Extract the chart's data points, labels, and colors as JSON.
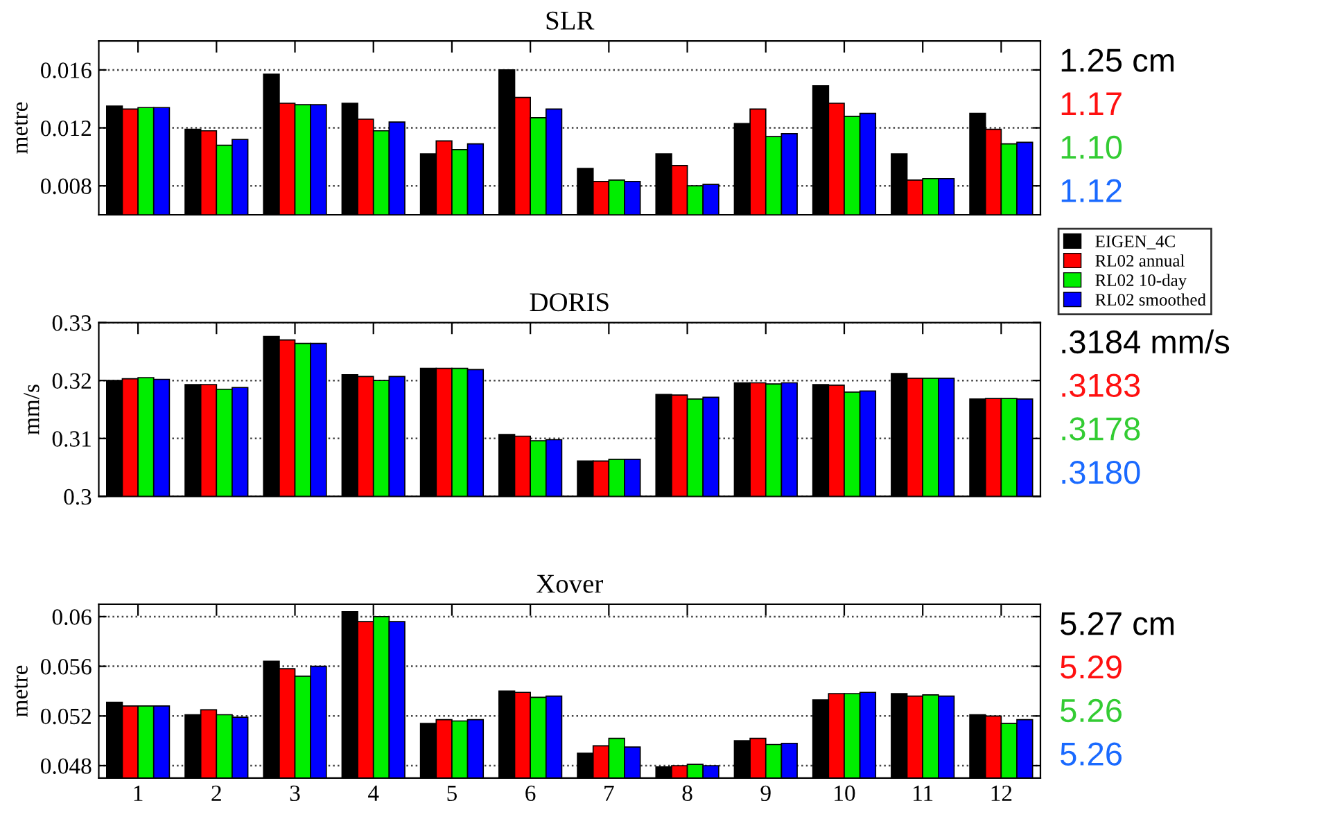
{
  "chart_data": [
    {
      "type": "bar",
      "title": "SLR",
      "ylabel": "metre",
      "categories": [
        "1",
        "2",
        "3",
        "4",
        "5",
        "6",
        "7",
        "8",
        "9",
        "10",
        "11",
        "12"
      ],
      "series": [
        {
          "name": "EIGEN_4C",
          "color": "#000000",
          "values": [
            0.0135,
            0.0119,
            0.0157,
            0.0137,
            0.0102,
            0.016,
            0.0092,
            0.0102,
            0.0123,
            0.0149,
            0.0102,
            0.013
          ]
        },
        {
          "name": "RL02 annual",
          "color": "#ff0000",
          "values": [
            0.0133,
            0.0118,
            0.0137,
            0.0126,
            0.0111,
            0.0141,
            0.0083,
            0.0094,
            0.0133,
            0.0137,
            0.0084,
            0.0119
          ]
        },
        {
          "name": "RL02 10-day",
          "color": "#00ee00",
          "values": [
            0.0134,
            0.0108,
            0.0136,
            0.0118,
            0.0105,
            0.0127,
            0.0084,
            0.008,
            0.0114,
            0.0128,
            0.0085,
            0.0109
          ]
        },
        {
          "name": "RL02 smoothed",
          "color": "#0000ff",
          "values": [
            0.0134,
            0.0112,
            0.0136,
            0.0124,
            0.0109,
            0.0133,
            0.0083,
            0.0081,
            0.0116,
            0.013,
            0.0085,
            0.011
          ]
        }
      ],
      "ylim": [
        0.006,
        0.018
      ],
      "yticks": [
        0.008,
        0.012,
        0.016
      ],
      "grid": "y",
      "legend": "right",
      "tick_labels": "y",
      "annotations": [
        "1.25 cm",
        "1.17",
        "1.10",
        "1.12"
      ]
    },
    {
      "type": "bar",
      "title": "DORIS",
      "ylabel": "mm/s",
      "categories": [
        "1",
        "2",
        "3",
        "4",
        "5",
        "6",
        "7",
        "8",
        "9",
        "10",
        "11",
        "12"
      ],
      "series": [
        {
          "color": "#000000",
          "values": [
            0.32,
            0.3193,
            0.3276,
            0.321,
            0.3221,
            0.3107,
            0.3061,
            0.3176,
            0.3196,
            0.3193,
            0.3212,
            0.3168
          ]
        },
        {
          "color": "#ff0000",
          "values": [
            0.3203,
            0.3193,
            0.327,
            0.3207,
            0.3221,
            0.3104,
            0.3061,
            0.3175,
            0.3196,
            0.3192,
            0.3204,
            0.3169
          ]
        },
        {
          "color": "#00ee00",
          "values": [
            0.3205,
            0.3185,
            0.3264,
            0.32,
            0.3221,
            0.3096,
            0.3064,
            0.3168,
            0.3194,
            0.318,
            0.3204,
            0.3169
          ]
        },
        {
          "color": "#0000ff",
          "values": [
            0.3202,
            0.3188,
            0.3264,
            0.3207,
            0.3219,
            0.3098,
            0.3064,
            0.3171,
            0.3196,
            0.3182,
            0.3204,
            0.3168
          ]
        }
      ],
      "ylim": [
        0.3,
        0.33
      ],
      "yticks": [
        0.3,
        0.31,
        0.32,
        0.33
      ],
      "grid": "y",
      "tick_labels": "y",
      "annotations": [
        ".3184 mm/s",
        ".3183",
        ".3178",
        ".3180"
      ]
    },
    {
      "type": "bar",
      "title": "Xover",
      "ylabel": "metre",
      "categories": [
        "1",
        "2",
        "3",
        "4",
        "5",
        "6",
        "7",
        "8",
        "9",
        "10",
        "11",
        "12"
      ],
      "series": [
        {
          "color": "#000000",
          "values": [
            0.0531,
            0.0521,
            0.0564,
            0.0604,
            0.0514,
            0.054,
            0.049,
            0.0479,
            0.05,
            0.0533,
            0.0538,
            0.0521
          ]
        },
        {
          "color": "#ff0000",
          "values": [
            0.0528,
            0.0525,
            0.0558,
            0.0596,
            0.0517,
            0.0539,
            0.0496,
            0.048,
            0.0502,
            0.0538,
            0.0536,
            0.052
          ]
        },
        {
          "color": "#00ee00",
          "values": [
            0.0528,
            0.0521,
            0.0552,
            0.06,
            0.0516,
            0.0535,
            0.0502,
            0.0481,
            0.0497,
            0.0538,
            0.0537,
            0.0514
          ]
        },
        {
          "color": "#0000ff",
          "values": [
            0.0528,
            0.0519,
            0.056,
            0.0596,
            0.0517,
            0.0536,
            0.0495,
            0.048,
            0.0498,
            0.0539,
            0.0536,
            0.0517
          ]
        }
      ],
      "ylim": [
        0.047,
        0.061
      ],
      "yticks": [
        0.048,
        0.052,
        0.056,
        0.06
      ],
      "grid": "y",
      "annotations": [
        "5.27 cm",
        "5.29",
        "5.26",
        "5.26"
      ]
    }
  ]
}
